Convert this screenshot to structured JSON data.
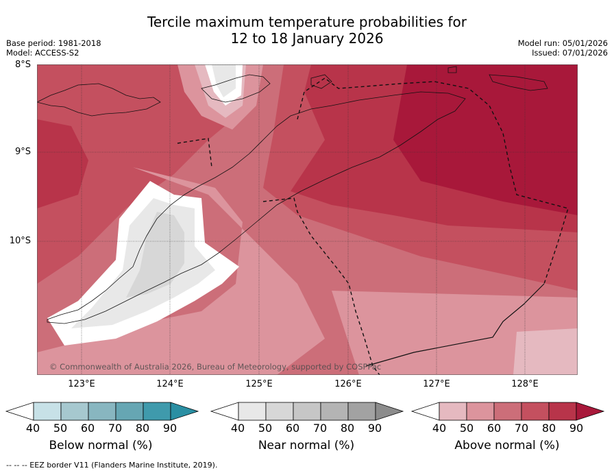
{
  "title_line1": "Tercile maximum temperature probabilities for",
  "title_line2": "12 to 18 January 2026",
  "meta": {
    "base_period": "Base period: 1981-2018",
    "model": "Model: ACCESS-S2",
    "model_run": "Model run: 05/01/2026",
    "issued": "Issued: 07/01/2026"
  },
  "map": {
    "lat_labels": [
      "8°S",
      "9°S",
      "10°S"
    ],
    "lon_labels": [
      "123°E",
      "124°E",
      "125°E",
      "126°E",
      "127°E",
      "128°E"
    ],
    "copyright": "© Commonwealth of Australia 2026, Bureau of Meteorology, supported by COSPPac"
  },
  "colorbars": [
    {
      "label": "Below normal (%)",
      "ticks": [
        "40",
        "50",
        "60",
        "70",
        "80",
        "90"
      ],
      "colors": [
        "#ffffff",
        "#c7e1e7",
        "#a6c8cf",
        "#88b6c0",
        "#66a6b3",
        "#3f9aac",
        "#2a8fa3"
      ]
    },
    {
      "label": "Near normal (%)",
      "ticks": [
        "40",
        "50",
        "60",
        "70",
        "80",
        "90"
      ],
      "colors": [
        "#ffffff",
        "#e8e8e8",
        "#d7d7d7",
        "#c6c6c6",
        "#b4b4b4",
        "#a2a2a2",
        "#8c8c8c"
      ]
    },
    {
      "label": "Above normal (%)",
      "ticks": [
        "40",
        "50",
        "60",
        "70",
        "80",
        "90"
      ],
      "colors": [
        "#ffffff",
        "#e5b9c0",
        "#dc949d",
        "#cc6e79",
        "#c4505f",
        "#b8344a",
        "#a8183a"
      ]
    }
  ],
  "footer": "--  --  -- EEZ border V11 (Flanders Marine Institute, 2019)."
}
